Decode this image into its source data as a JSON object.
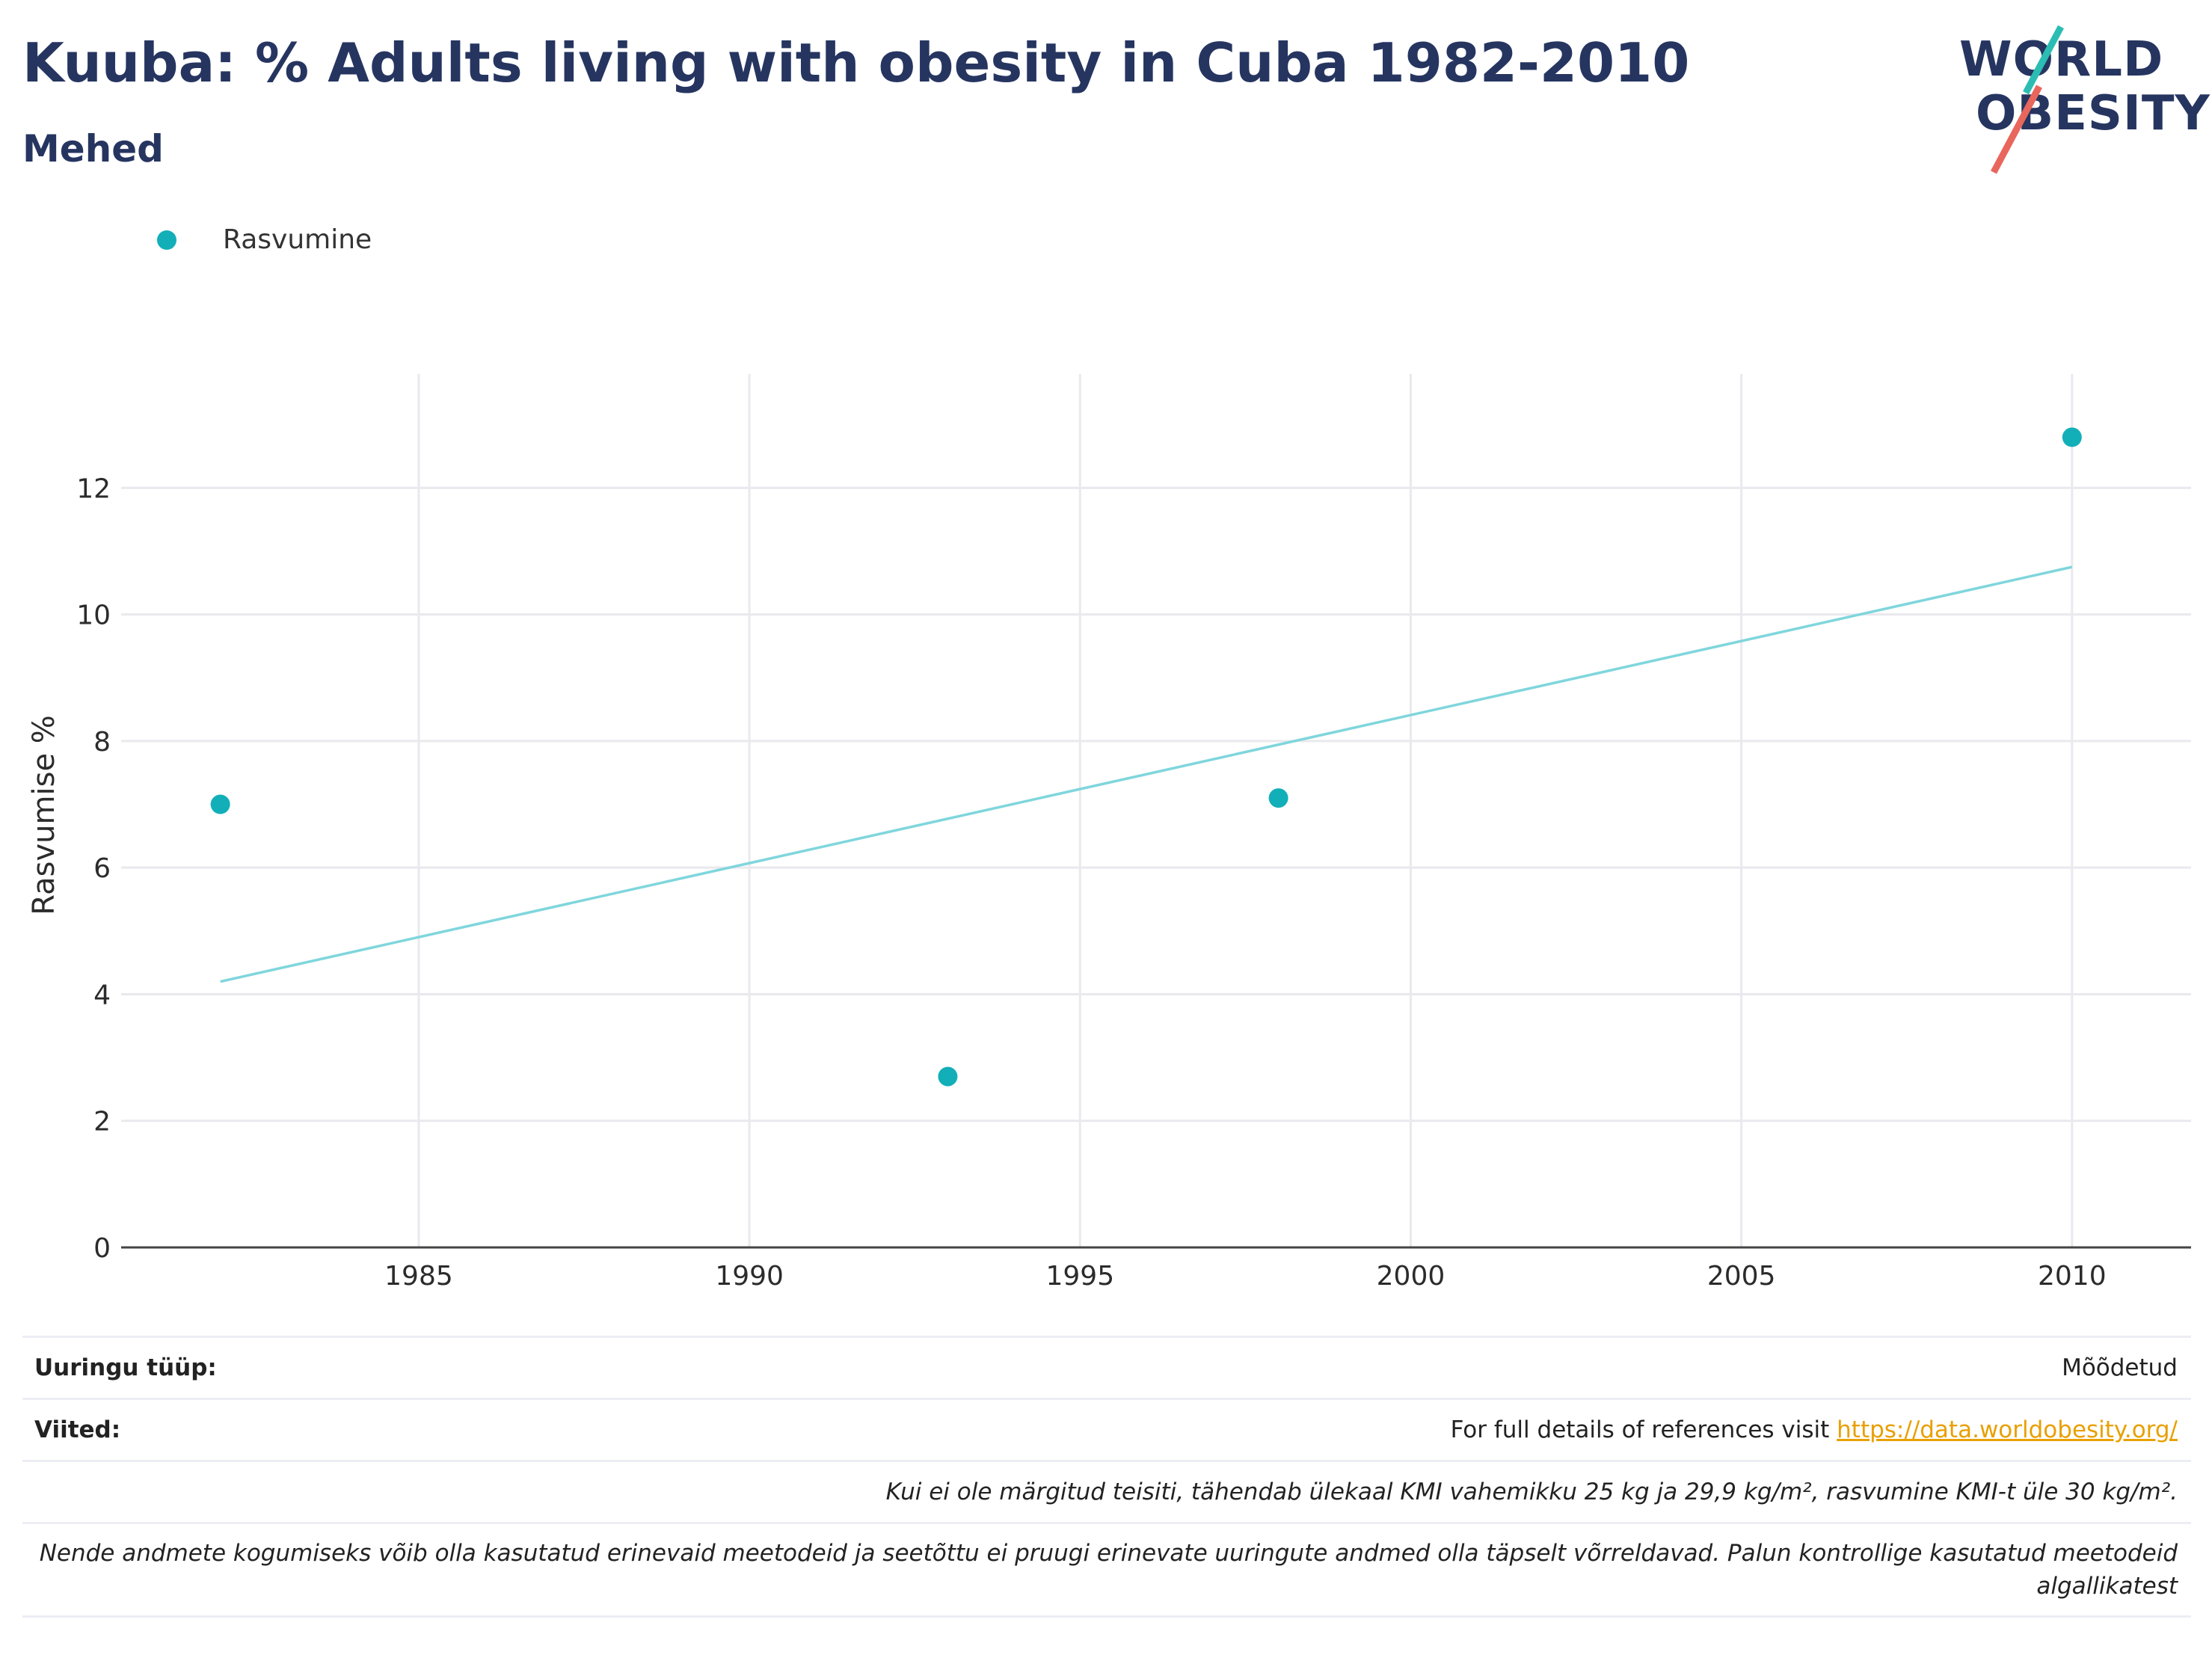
{
  "header": {
    "title": "Kuuba: % Adults living with obesity in Cuba 1982-2010",
    "subtitle": "Mehed"
  },
  "logo": {
    "line1": "WORLD",
    "line2": "OBESITY"
  },
  "colors": {
    "accent": "#12afb8",
    "trend": "#7fd6dc",
    "title": "#263560",
    "link": "#e8a000"
  },
  "chart_data": {
    "type": "scatter",
    "title": "Kuuba: % Adults living with obesity in Cuba 1982-2010",
    "subtitle": "Mehed",
    "xlabel": "",
    "ylabel": "Rasvumise %",
    "xlim": [
      1980.5,
      2011.8
    ],
    "ylim": [
      0,
      13.8
    ],
    "xticks": [
      1985,
      1990,
      1995,
      2000,
      2005,
      2010
    ],
    "yticks": [
      0,
      2,
      4,
      6,
      8,
      10,
      12
    ],
    "grid": true,
    "legend": {
      "placement": "top-left",
      "entries": [
        "Rasvumine"
      ]
    },
    "series": [
      {
        "name": "Rasvumine",
        "x": [
          1982,
          1993,
          1998,
          2010
        ],
        "y": [
          7.0,
          2.7,
          7.1,
          12.8
        ]
      }
    ],
    "trendline": {
      "x": [
        1982,
        2010
      ],
      "y": [
        4.2,
        10.75
      ]
    }
  },
  "footer": {
    "survey_type_label": "Uuringu tüüp:",
    "survey_type_value": "Mõõdetud",
    "references_label": "Viited:",
    "references_text": "For full details of references visit ",
    "references_link": "https://data.worldobesity.org/",
    "note1": "Kui ei ole märgitud teisiti, tähendab ülekaal KMI vahemikku 25 kg ja 29,9 kg/m², rasvumine KMI-t üle 30 kg/m².",
    "note2_line1": "Nende andmete kogumiseks võib olla kasutatud erinevaid meetodeid ja seetõttu ei pruugi erinevate uuringute andmed olla täpselt võrreldavad. Palun kontrollige kasutatud meetodeid",
    "note2_line2": "algallikatest"
  }
}
